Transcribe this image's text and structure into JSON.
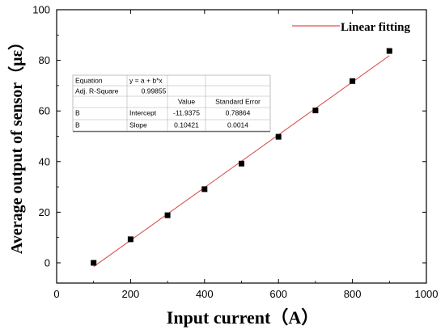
{
  "chart_data": {
    "type": "scatter",
    "xlabel": "Input current（A）",
    "ylabel": "Average output of sensor（με）",
    "xlim": [
      0,
      1000
    ],
    "ylim": [
      -8,
      100
    ],
    "xticks": [
      "0",
      "200",
      "400",
      "600",
      "800",
      "1000"
    ],
    "yticks": [
      "0",
      "20",
      "40",
      "60",
      "80",
      "100"
    ],
    "legend_position": "top-right",
    "series": [
      {
        "marker": "square",
        "x": [
          100,
          200,
          300,
          400,
          500,
          600,
          700,
          800,
          900
        ],
        "y": [
          0,
          9.3,
          18.8,
          29.1,
          39.2,
          49.8,
          60.2,
          71.8,
          83.7
        ]
      }
    ],
    "fit": {
      "name": "Linear fitting",
      "intercept": -11.9375,
      "slope": 0.10421,
      "x_range": [
        100,
        900
      ],
      "color": "#d9534f"
    },
    "stats_table": {
      "rows": [
        [
          "Equation",
          "y = a + b*x",
          "",
          ""
        ],
        [
          "Adj. R-Square",
          "0.99855",
          "",
          ""
        ],
        [
          "",
          "",
          "Value",
          "Standard Error"
        ],
        [
          "B",
          "Intercept",
          "-11.9375",
          "0.78864"
        ],
        [
          "B",
          "Slope",
          "0.10421",
          "0.0014"
        ]
      ]
    }
  }
}
